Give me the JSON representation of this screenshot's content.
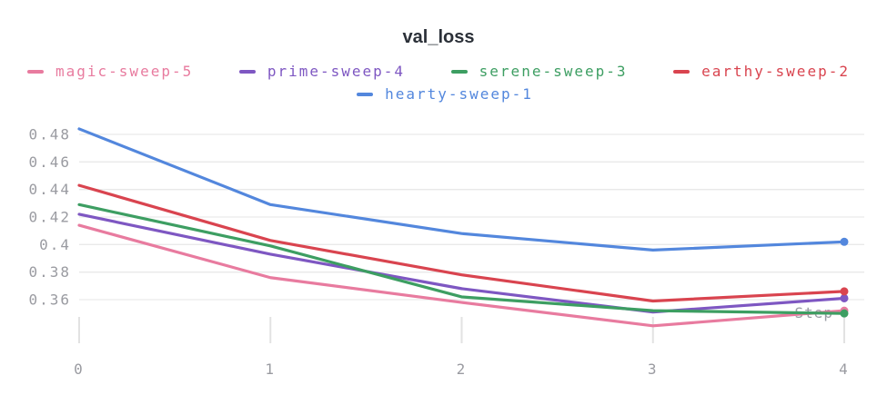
{
  "chart_data": {
    "type": "line",
    "title": "val_loss",
    "xlabel": "Step",
    "x": [
      0,
      1,
      2,
      3,
      4
    ],
    "x_tick_labels": [
      "0",
      "1",
      "2",
      "3",
      "4"
    ],
    "y_tick_values": [
      0.48,
      0.46,
      0.44,
      0.42,
      0.4,
      0.38,
      0.36
    ],
    "y_tick_labels": [
      "0.48",
      "0.46",
      "0.44",
      "0.42",
      "0.4",
      "0.38",
      "0.36"
    ],
    "ylim": [
      0.336,
      0.486
    ],
    "grid": "horizontal",
    "legend_position": "top",
    "axis_text_color": "#9a9ba1",
    "grid_color": "#e9e9e9",
    "tick_color": "#e2e2e2",
    "title_color": "#2b3038",
    "series": [
      {
        "name": "magic-sweep-5",
        "color": "#e87b9f",
        "values": [
          0.414,
          0.376,
          0.358,
          0.341,
          0.352
        ]
      },
      {
        "name": "prime-sweep-4",
        "color": "#7e57c2",
        "values": [
          0.422,
          0.393,
          0.368,
          0.351,
          0.361
        ]
      },
      {
        "name": "serene-sweep-3",
        "color": "#3d9e62",
        "values": [
          0.429,
          0.399,
          0.362,
          0.352,
          0.35
        ]
      },
      {
        "name": "earthy-sweep-2",
        "color": "#d9444f",
        "values": [
          0.443,
          0.403,
          0.378,
          0.359,
          0.366
        ]
      },
      {
        "name": "hearty-sweep-1",
        "color": "#5387dd",
        "values": [
          0.484,
          0.429,
          0.408,
          0.396,
          0.402
        ]
      }
    ]
  }
}
